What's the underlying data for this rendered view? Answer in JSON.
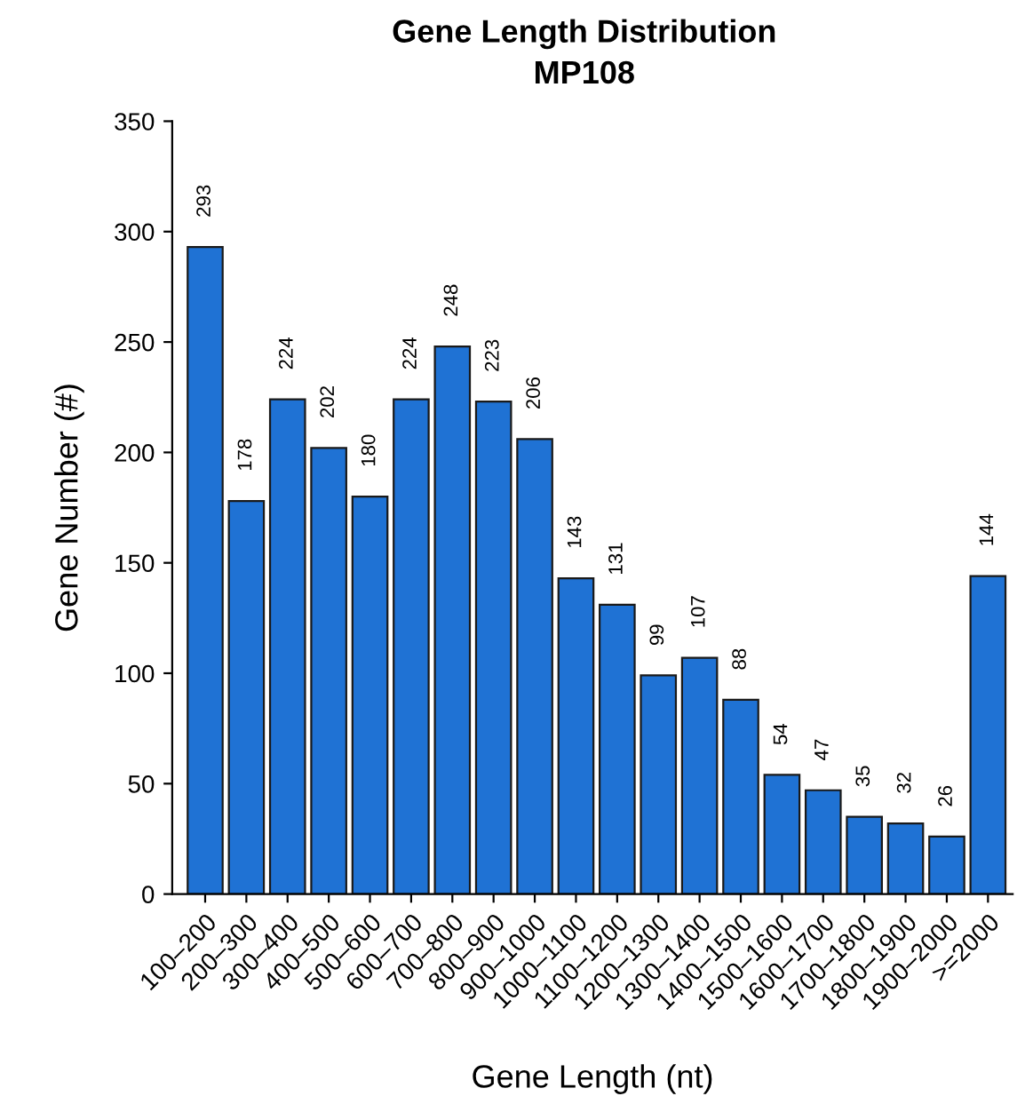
{
  "chart_data": {
    "type": "bar",
    "title": "Gene Length Distribution",
    "subtitle": "MP108",
    "xlabel": "Gene Length (nt)",
    "ylabel": "Gene Number (#)",
    "categories": [
      "100–200",
      "200–300",
      "300–400",
      "400–500",
      "500–600",
      "600–700",
      "700–800",
      "800–900",
      "900–1000",
      "1000–1100",
      "1100–1200",
      "1200–1300",
      "1300–1400",
      "1400–1500",
      "1500–1600",
      "1600–1700",
      "1700–1800",
      "1800–1900",
      "1900–2000",
      ">=2000"
    ],
    "values": [
      293,
      178,
      224,
      202,
      180,
      224,
      248,
      223,
      206,
      143,
      131,
      99,
      107,
      88,
      54,
      47,
      35,
      32,
      26,
      144
    ],
    "color": "#1f72d4",
    "ylim": [
      0,
      350
    ],
    "yticks": [
      0,
      50,
      100,
      150,
      200,
      250,
      300,
      350
    ],
    "data_labels": true,
    "grid": false,
    "legend": false
  }
}
